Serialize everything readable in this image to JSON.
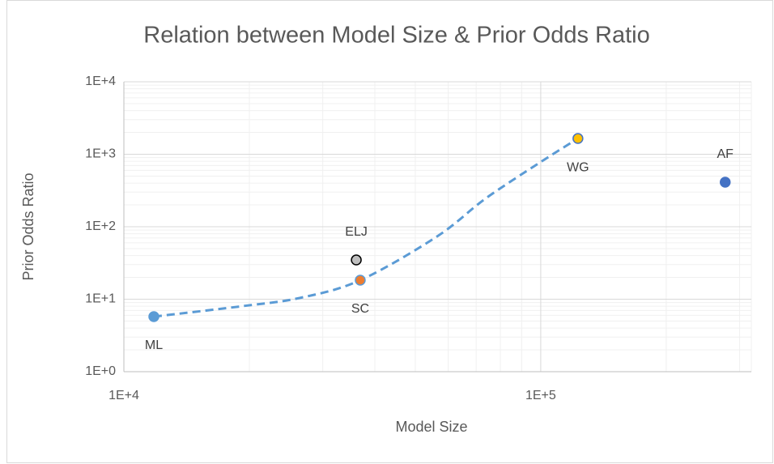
{
  "chart_data": {
    "type": "scatter",
    "title": "Relation between Model Size & Prior Odds Ratio",
    "x_label": "Model Size",
    "y_label": "Prior Odds Ratio",
    "xscale": "log",
    "yscale": "log",
    "xlim": [
      10000,
      320000
    ],
    "ylim": [
      1,
      10000
    ],
    "xticks": [
      {
        "value": 10000,
        "label": "1E+4"
      },
      {
        "value": 100000,
        "label": "1E+5"
      }
    ],
    "yticks": [
      {
        "value": 1,
        "label": "1E+0"
      },
      {
        "value": 10,
        "label": "1E+1"
      },
      {
        "value": 100,
        "label": "1E+2"
      },
      {
        "value": 1000,
        "label": "1E+3"
      },
      {
        "value": 10000,
        "label": "1E+4"
      }
    ],
    "grid": true,
    "minor_grid": true,
    "series": [
      {
        "x": [
          11800,
          36900,
          36100,
          122800,
          277000
        ],
        "values": [
          5.75,
          18.3,
          34.8,
          1650,
          412
        ],
        "labels": [
          "ML",
          "SC",
          "ELJ",
          "WG",
          "AF"
        ],
        "label_position": [
          "below",
          "below",
          "above",
          "below",
          "above"
        ],
        "colors": [
          "#5b9bd5",
          "#ed7d31",
          "#bfbfbf",
          "#ffc000",
          "#4472c4"
        ],
        "edge_colors": [
          "#5b9bd5",
          "#5b9bd5",
          "#000000",
          "#4472c4",
          "#4472c4"
        ]
      },
      {
        "x": [
          11800,
          19300,
          26400,
          36900,
          56400,
          73800,
          100000,
          122800
        ],
        "values": [
          5.75,
          8.04,
          10.4,
          18.3,
          73.5,
          246,
          783,
          1650
        ],
        "line": "dashed",
        "color": "#5b9bd5"
      }
    ]
  }
}
